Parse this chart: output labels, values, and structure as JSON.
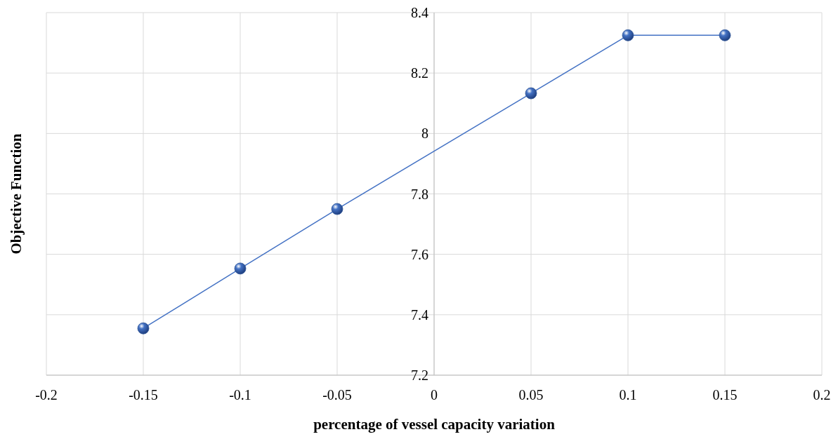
{
  "chart_data": {
    "type": "line",
    "xlabel": "percentage of vessel capacity variation",
    "ylabel": "Objective Function",
    "x": [
      -0.15,
      -0.1,
      -0.05,
      0.05,
      0.1,
      0.15
    ],
    "series": [
      {
        "color": "#4472c4",
        "values": [
          7.355,
          7.553,
          7.75,
          8.133,
          8.325,
          8.325
        ]
      }
    ],
    "xlim": [
      -0.2,
      0.2
    ],
    "xticks": [
      -0.2,
      -0.15,
      -0.1,
      -0.05,
      0,
      0.05,
      0.1,
      0.15,
      0.2
    ],
    "ylim": [
      7.2,
      8.4
    ],
    "yticks": [
      7.2,
      7.4,
      7.6,
      7.8,
      8,
      8.2,
      8.4
    ],
    "grid": true,
    "marker": "circle",
    "line_style": "solid"
  }
}
